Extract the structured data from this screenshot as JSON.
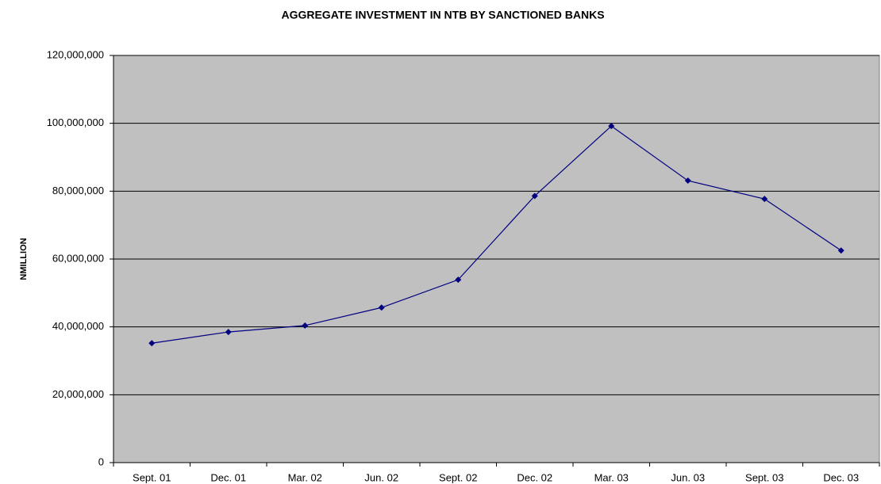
{
  "chart_data": {
    "type": "line",
    "title": "AGGREGATE INVESTMENT IN NTB BY SANCTIONED BANKS",
    "y_label": "NMILLION",
    "categories": [
      "Sept. 01",
      "Dec. 01",
      "Mar. 02",
      "Jun. 02",
      "Sept. 02",
      "Dec. 02",
      "Mar. 03",
      "Jun. 03",
      "Sept. 03",
      "Dec. 03"
    ],
    "values": [
      35200000,
      38500000,
      40400000,
      45700000,
      53900000,
      78600000,
      99200000,
      83100000,
      77700000,
      62500000
    ],
    "color": "#000080",
    "ylim": [
      0,
      120000000
    ],
    "yticks": [
      0,
      {
        "value": 20000000,
        "label": "20,000,000"
      },
      {
        "value": 40000000,
        "label": "40,000,000"
      },
      {
        "value": 60000000,
        "label": "60,000,000"
      },
      {
        "value": 80000000,
        "label": "80,000,000"
      },
      {
        "value": 100000000,
        "label": "100,000,000"
      },
      {
        "value": 120000000,
        "label": "120,000,000"
      }
    ],
    "grid": true
  }
}
